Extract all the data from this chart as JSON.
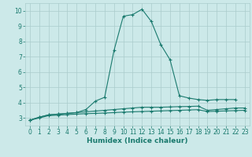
{
  "xlabel": "Humidex (Indice chaleur)",
  "x": [
    0,
    1,
    2,
    3,
    4,
    5,
    6,
    7,
    8,
    9,
    10,
    11,
    12,
    13,
    14,
    15,
    16,
    17,
    18,
    19,
    20,
    21,
    22,
    23
  ],
  "line1": [
    2.85,
    3.05,
    3.2,
    3.25,
    3.3,
    3.35,
    3.55,
    4.1,
    4.35,
    7.4,
    9.65,
    9.75,
    10.1,
    9.3,
    7.8,
    6.8,
    4.45,
    4.3,
    4.2,
    4.15,
    4.2,
    4.2,
    4.2,
    null
  ],
  "line2": [
    2.85,
    3.05,
    3.2,
    3.25,
    3.3,
    3.35,
    3.4,
    3.45,
    3.5,
    3.55,
    3.6,
    3.65,
    3.7,
    3.7,
    3.7,
    3.72,
    3.74,
    3.75,
    3.77,
    3.5,
    3.55,
    3.6,
    3.65,
    3.65
  ],
  "line3": [
    2.85,
    3.0,
    3.15,
    3.18,
    3.22,
    3.25,
    3.28,
    3.3,
    3.32,
    3.35,
    3.38,
    3.4,
    3.42,
    3.44,
    3.46,
    3.48,
    3.5,
    3.52,
    3.54,
    3.42,
    3.44,
    3.46,
    3.48,
    3.5
  ],
  "line_color": "#1a7a6e",
  "bg_color": "#cce9e9",
  "grid_color": "#aacccc",
  "ylim": [
    2.5,
    10.5
  ],
  "xlim": [
    -0.5,
    23.5
  ],
  "yticks": [
    3,
    4,
    5,
    6,
    7,
    8,
    9,
    10
  ],
  "xticks": [
    0,
    1,
    2,
    3,
    4,
    5,
    6,
    7,
    8,
    9,
    10,
    11,
    12,
    13,
    14,
    15,
    16,
    17,
    18,
    19,
    20,
    21,
    22,
    23
  ],
  "tick_fontsize": 5.5,
  "xlabel_fontsize": 6.5
}
